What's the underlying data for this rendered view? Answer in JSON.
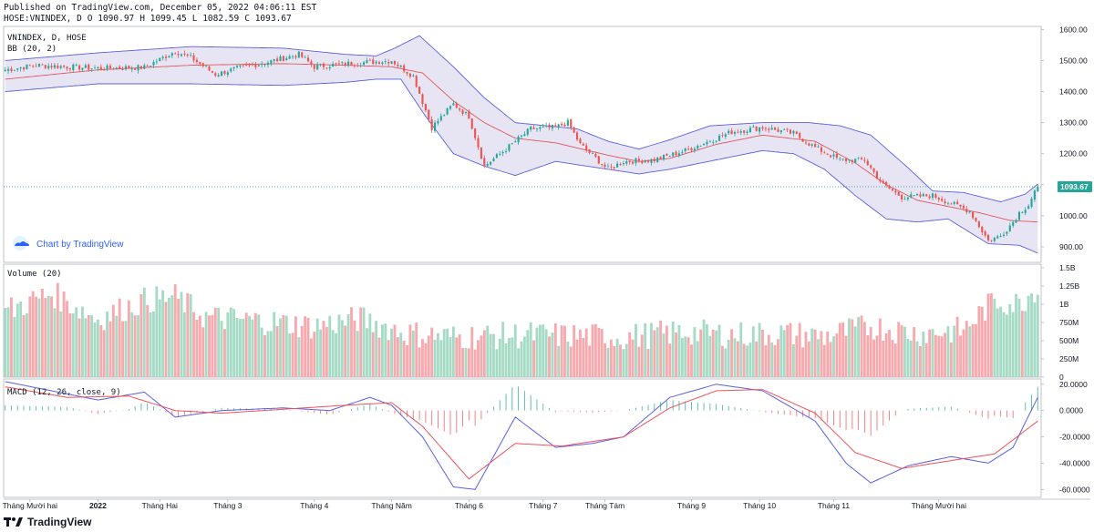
{
  "header": {
    "published": "Published on TradingView.com, December 05, 2022 04:06:11 EST",
    "symbol": "HOSE:VNINDEX, D",
    "open": "O 1090.97",
    "high": "H 1099.45",
    "low": "L 1082.59",
    "close": "C 1093.67"
  },
  "panes": {
    "price": {
      "title": "VNINDEX, D, HOSE",
      "indicator": "BB (20, 2)"
    },
    "volume": {
      "title": "Volume (20)"
    },
    "macd": {
      "title": "MACD (12, 26, close, 9)"
    }
  },
  "watermark": "Chart by TradingView",
  "footer_brand": "TradingView",
  "last_price_label": "1093.67",
  "colors": {
    "up": "#26a69a",
    "down": "#ef5350",
    "vol_up": "#a5dbc5",
    "vol_down": "#f7a9ae",
    "bb_fill": "#e3e1f1",
    "bb_line": "#5b5fe0",
    "basis": "#e0575b",
    "macd_line": "#5b5fe0",
    "signal_line": "#f0525a",
    "last_price": "#26a69a"
  },
  "chart_data": [
    {
      "type": "candlestick",
      "title": "VNINDEX, D, HOSE",
      "ylim": [
        850,
        1610
      ],
      "y_ticks": [
        "1600.00",
        "1500.00",
        "1400.00",
        "1300.00",
        "1200.00",
        "1100.00",
        "1000.00",
        "900.00"
      ],
      "x_ticks": [
        "Tháng Mười hai",
        "2022",
        "Tháng Hai",
        "Tháng 3",
        "Tháng 4",
        "Tháng Năm",
        "Tháng 6",
        "Tháng 7",
        "Tháng Tám",
        "Tháng 9",
        "Tháng 10",
        "Tháng 11",
        "Tháng Mười hai"
      ],
      "close_path": [
        [
          0,
          1470
        ],
        [
          10,
          1485
        ],
        [
          20,
          1480
        ],
        [
          30,
          1475
        ],
        [
          45,
          1478
        ],
        [
          55,
          1530
        ],
        [
          60,
          1510
        ],
        [
          68,
          1455
        ],
        [
          75,
          1475
        ],
        [
          85,
          1495
        ],
        [
          95,
          1520
        ],
        [
          100,
          1480
        ],
        [
          110,
          1490
        ],
        [
          125,
          1500
        ],
        [
          132,
          1450
        ],
        [
          138,
          1285
        ],
        [
          145,
          1360
        ],
        [
          150,
          1320
        ],
        [
          155,
          1160
        ],
        [
          162,
          1215
        ],
        [
          170,
          1280
        ],
        [
          178,
          1285
        ],
        [
          182,
          1300
        ],
        [
          186,
          1230
        ],
        [
          195,
          1150
        ],
        [
          200,
          1175
        ],
        [
          210,
          1180
        ],
        [
          220,
          1210
        ],
        [
          235,
          1270
        ],
        [
          245,
          1285
        ],
        [
          255,
          1265
        ],
        [
          262,
          1220
        ],
        [
          270,
          1180
        ],
        [
          278,
          1180
        ],
        [
          284,
          1100
        ],
        [
          290,
          1060
        ],
        [
          300,
          1065
        ],
        [
          306,
          1040
        ],
        [
          312,
          1015
        ],
        [
          318,
          920
        ],
        [
          322,
          935
        ],
        [
          326,
          980
        ],
        [
          328,
          1010
        ],
        [
          331,
          1035
        ],
        [
          333,
          1078
        ],
        [
          334,
          1093.67
        ]
      ],
      "series": [
        {
          "name": "BB Upper",
          "path": [
            [
              0,
              1500
            ],
            [
              30,
              1525
            ],
            [
              60,
              1545
            ],
            [
              90,
              1540
            ],
            [
              110,
              1520
            ],
            [
              120,
              1515
            ],
            [
              126,
              1540
            ],
            [
              134,
              1580
            ],
            [
              145,
              1480
            ],
            [
              155,
              1380
            ],
            [
              165,
              1300
            ],
            [
              175,
              1290
            ],
            [
              185,
              1280
            ],
            [
              195,
              1240
            ],
            [
              205,
              1215
            ],
            [
              215,
              1245
            ],
            [
              228,
              1290
            ],
            [
              245,
              1300
            ],
            [
              260,
              1300
            ],
            [
              270,
              1290
            ],
            [
              280,
              1260
            ],
            [
              292,
              1155
            ],
            [
              300,
              1080
            ],
            [
              310,
              1075
            ],
            [
              322,
              1045
            ],
            [
              330,
              1070
            ],
            [
              334,
              1102
            ]
          ]
        },
        {
          "name": "BB Lower",
          "path": [
            [
              0,
              1400
            ],
            [
              30,
              1425
            ],
            [
              60,
              1425
            ],
            [
              90,
              1420
            ],
            [
              110,
              1430
            ],
            [
              120,
              1440
            ],
            [
              128,
              1440
            ],
            [
              136,
              1320
            ],
            [
              145,
              1200
            ],
            [
              155,
              1160
            ],
            [
              165,
              1130
            ],
            [
              178,
              1175
            ],
            [
              195,
              1150
            ],
            [
              205,
              1135
            ],
            [
              215,
              1150
            ],
            [
              230,
              1180
            ],
            [
              245,
              1210
            ],
            [
              255,
              1200
            ],
            [
              265,
              1150
            ],
            [
              275,
              1065
            ],
            [
              285,
              990
            ],
            [
              295,
              980
            ],
            [
              305,
              990
            ],
            [
              318,
              910
            ],
            [
              328,
              905
            ],
            [
              334,
              880
            ]
          ]
        },
        {
          "name": "BB Basis",
          "path": [
            [
              0,
              1440
            ],
            [
              30,
              1470
            ],
            [
              60,
              1485
            ],
            [
              90,
              1490
            ],
            [
              110,
              1485
            ],
            [
              125,
              1480
            ],
            [
              135,
              1460
            ],
            [
              145,
              1370
            ],
            [
              155,
              1300
            ],
            [
              165,
              1250
            ],
            [
              178,
              1235
            ],
            [
              195,
              1195
            ],
            [
              205,
              1175
            ],
            [
              215,
              1185
            ],
            [
              230,
              1230
            ],
            [
              245,
              1260
            ],
            [
              262,
              1240
            ],
            [
              275,
              1170
            ],
            [
              285,
              1100
            ],
            [
              295,
              1050
            ],
            [
              305,
              1030
            ],
            [
              315,
              1010
            ],
            [
              325,
              985
            ],
            [
              334,
              980
            ]
          ]
        }
      ]
    },
    {
      "type": "bar",
      "title": "Volume (20)",
      "ylim": [
        0,
        1550000000
      ],
      "y_ticks": [
        "1.5B",
        "1.25B",
        "1B",
        "750M",
        "500M",
        "250M",
        "0"
      ],
      "series": [
        {
          "name": "Volume",
          "path": [
            [
              0,
              900
            ],
            [
              15,
              1150
            ],
            [
              30,
              800
            ],
            [
              45,
              1050
            ],
            [
              55,
              1100
            ],
            [
              65,
              820
            ],
            [
              80,
              780
            ],
            [
              100,
              700
            ],
            [
              115,
              800
            ],
            [
              130,
              600
            ],
            [
              145,
              550
            ],
            [
              170,
              580
            ],
            [
              200,
              550
            ],
            [
              220,
              620
            ],
            [
              235,
              580
            ],
            [
              250,
              600
            ],
            [
              265,
              560
            ],
            [
              280,
              700
            ],
            [
              295,
              600
            ],
            [
              310,
              650
            ],
            [
              320,
              1050
            ],
            [
              328,
              1000
            ],
            [
              334,
              1250
            ]
          ]
        }
      ]
    },
    {
      "type": "line",
      "title": "MACD (12, 26, close, 9)",
      "ylim": [
        -66,
        24
      ],
      "y_ticks": [
        "20.0000",
        "0.0000",
        "-20.0000",
        "-40.0000",
        "-60.0000"
      ],
      "series": [
        {
          "name": "MACD",
          "path": [
            [
              0,
              22
            ],
            [
              15,
              15
            ],
            [
              30,
              8
            ],
            [
              45,
              14
            ],
            [
              55,
              -5
            ],
            [
              70,
              0
            ],
            [
              90,
              2
            ],
            [
              105,
              0
            ],
            [
              118,
              10
            ],
            [
              125,
              4
            ],
            [
              135,
              -20
            ],
            [
              145,
              -58
            ],
            [
              152,
              -60
            ],
            [
              165,
              -5
            ],
            [
              178,
              -28
            ],
            [
              190,
              -25
            ],
            [
              200,
              -20
            ],
            [
              215,
              10
            ],
            [
              230,
              20
            ],
            [
              245,
              15
            ],
            [
              262,
              -8
            ],
            [
              272,
              -40
            ],
            [
              280,
              -55
            ],
            [
              292,
              -42
            ],
            [
              306,
              -35
            ],
            [
              318,
              -40
            ],
            [
              326,
              -28
            ],
            [
              334,
              10
            ]
          ]
        },
        {
          "name": "Signal",
          "path": [
            [
              0,
              18
            ],
            [
              20,
              10
            ],
            [
              40,
              11
            ],
            [
              55,
              0
            ],
            [
              70,
              -2
            ],
            [
              90,
              1
            ],
            [
              110,
              4
            ],
            [
              125,
              6
            ],
            [
              135,
              -12
            ],
            [
              150,
              -52
            ],
            [
              165,
              -25
            ],
            [
              180,
              -27
            ],
            [
              200,
              -20
            ],
            [
              215,
              2
            ],
            [
              230,
              15
            ],
            [
              245,
              16
            ],
            [
              262,
              -2
            ],
            [
              275,
              -32
            ],
            [
              290,
              -44
            ],
            [
              306,
              -38
            ],
            [
              320,
              -33
            ],
            [
              334,
              -8
            ]
          ]
        }
      ]
    }
  ]
}
